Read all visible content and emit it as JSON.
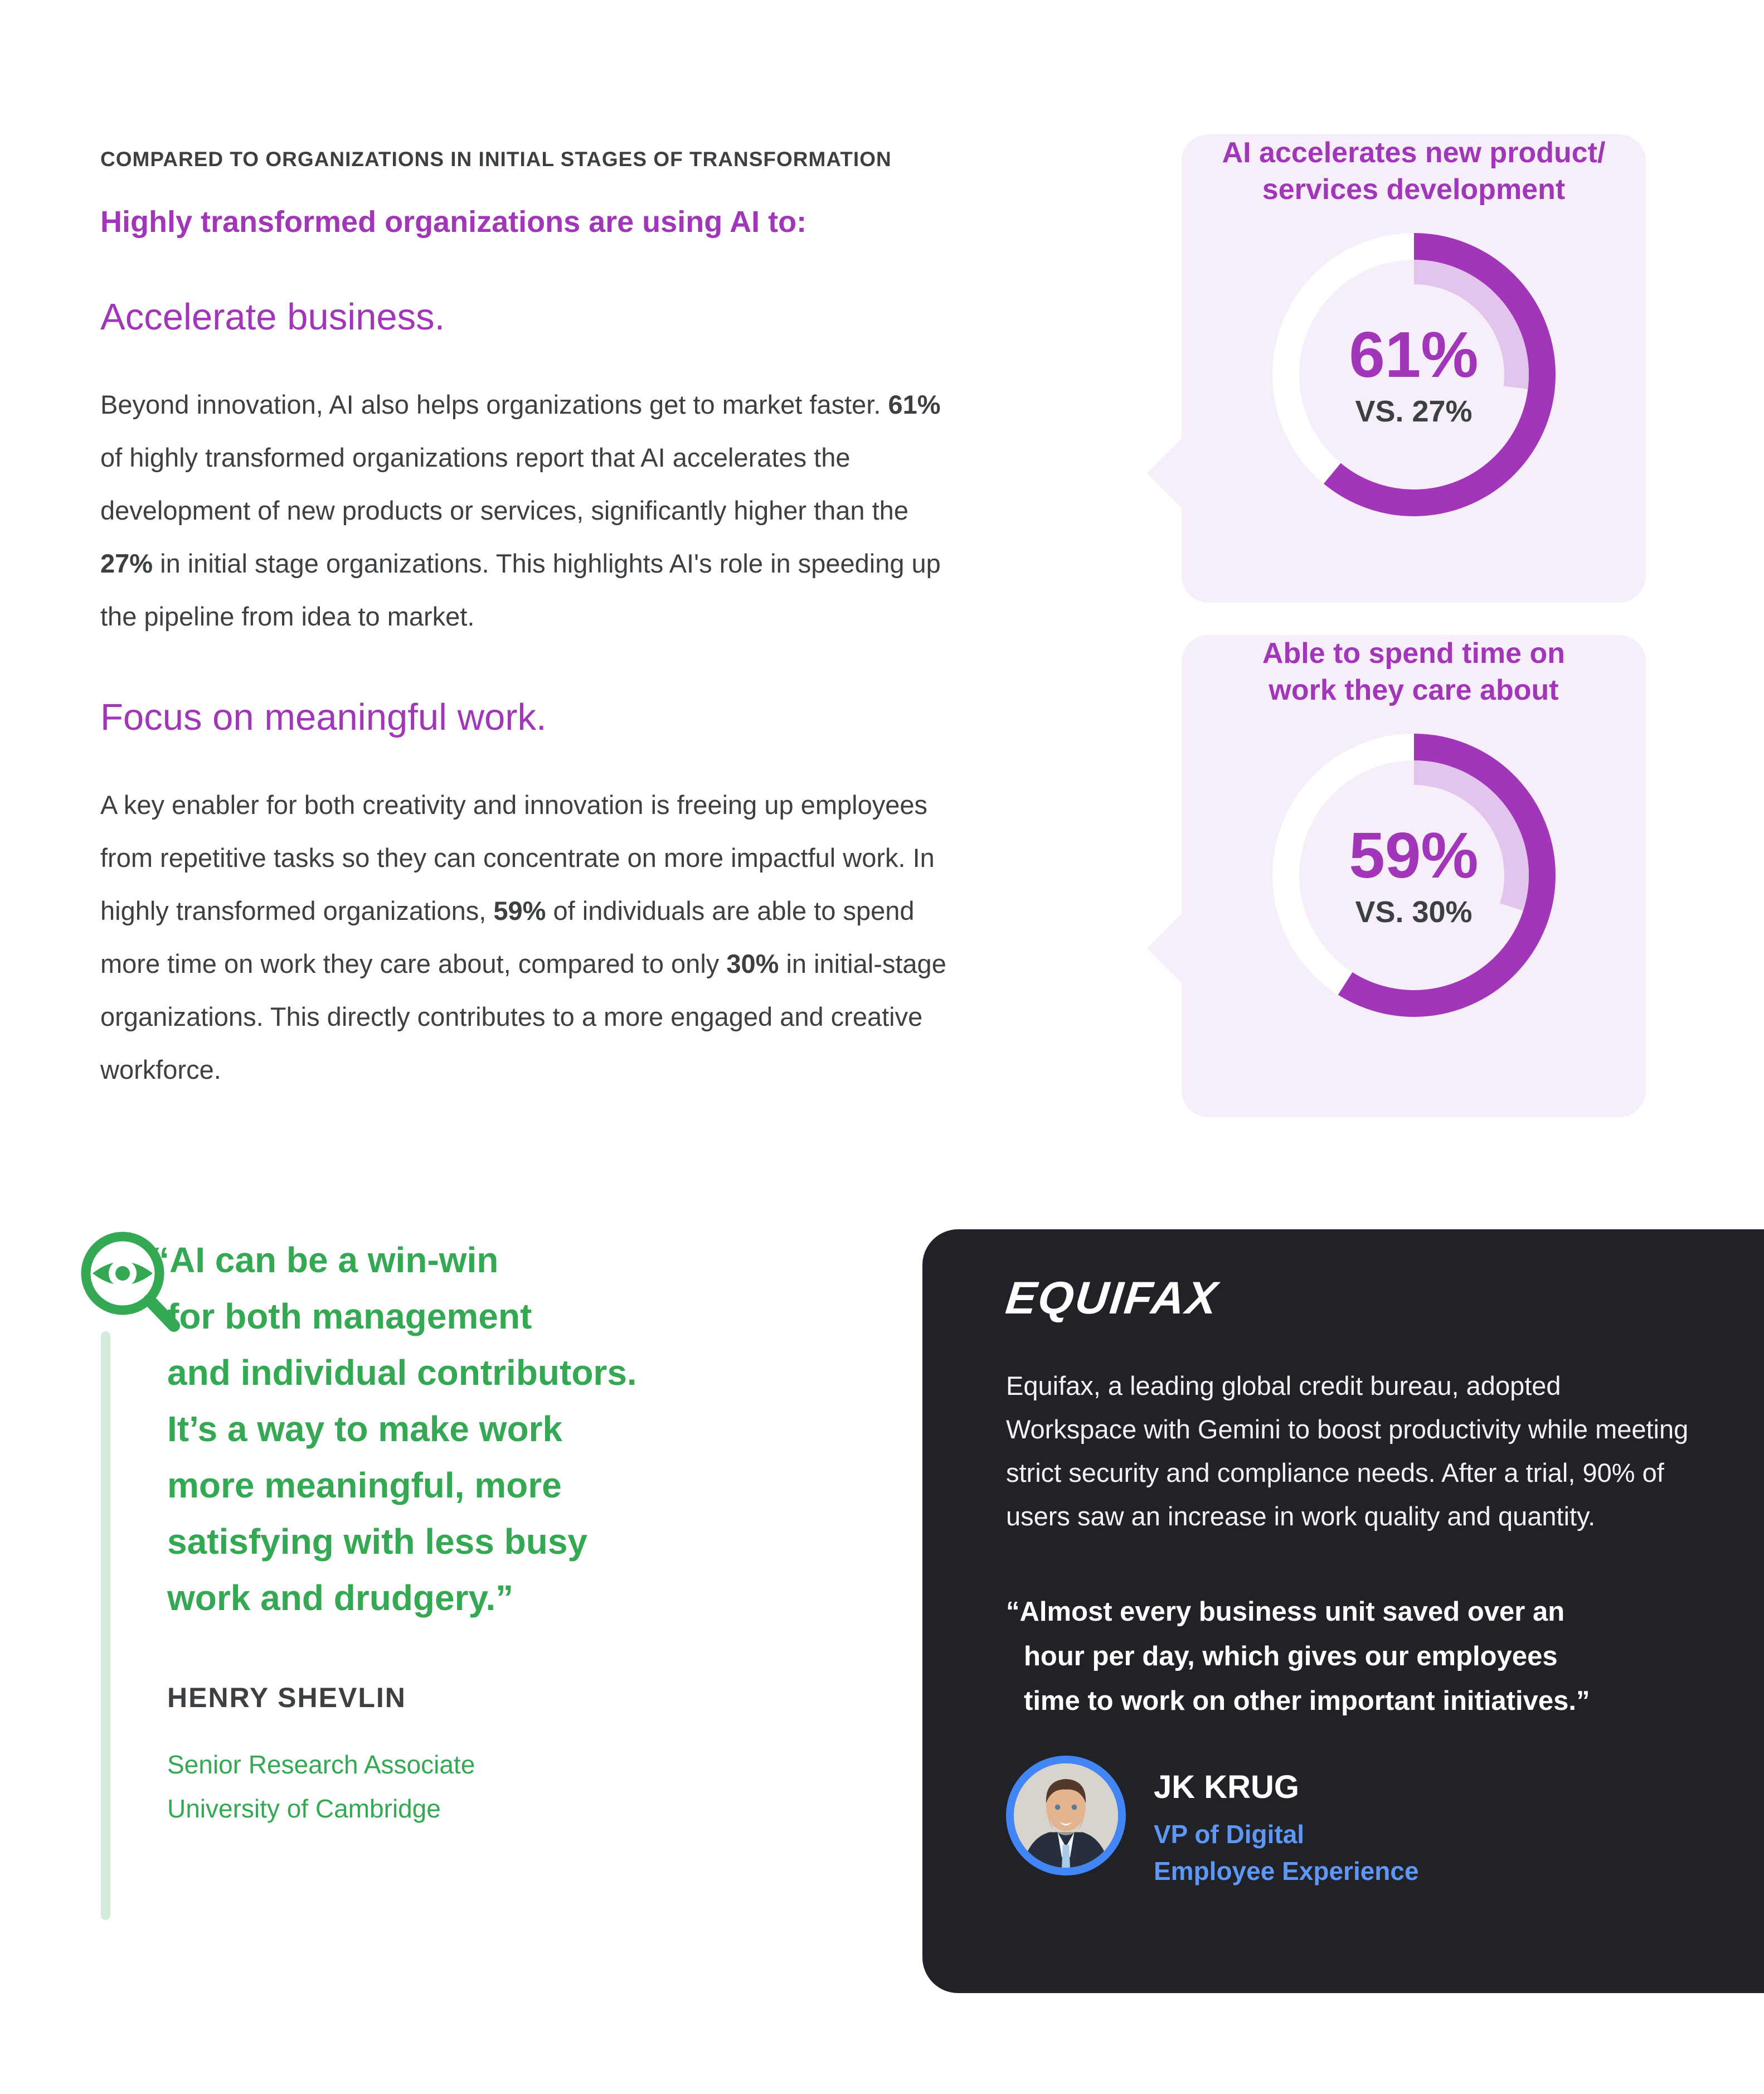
{
  "colors": {
    "purple": "#a136b8",
    "purple_light_ring": "#e2c4ec",
    "card_bg": "#f6eef9",
    "text_dark": "#3c4043",
    "green": "#34a853",
    "green_line": "#d3ead9",
    "dark_card_bg": "#202227",
    "blue": "#4285f4",
    "blue_text": "#5e97f6"
  },
  "header": {
    "eyebrow": "COMPARED TO ORGANIZATIONS IN INITIAL STAGES OF TRANSFORMATION",
    "subhead": "Highly transformed organizations are using AI to:"
  },
  "sections": [
    {
      "heading": "Accelerate business.",
      "paragraph": [
        {
          "text": "Beyond innovation, AI also helps organizations get to market faster. "
        },
        {
          "text": "61%",
          "bold": true
        },
        {
          "text": " of highly transformed organizations report that AI accelerates the development of new products or services, significantly higher than the "
        },
        {
          "text": "27%",
          "bold": true
        },
        {
          "text": " in initial stage organizations. This highlights AI's role in speeding up the pipeline from idea to market."
        }
      ]
    },
    {
      "heading": "Focus on meaningful work.",
      "paragraph": [
        {
          "text": "A key enabler for both creativity and innovation is freeing up employees from repetitive tasks so they can concentrate on more impactful work. In highly transformed organizations, "
        },
        {
          "text": "59%",
          "bold": true
        },
        {
          "text": " of individuals are able to spend more time on work they care about, compared to only "
        },
        {
          "text": "30%",
          "bold": true
        },
        {
          "text": " in initial-stage organizations. This directly contributes to a more engaged and creative workforce."
        }
      ]
    }
  ],
  "stat_cards": [
    {
      "title": "AI accelerates new product/\nservices development",
      "value_label": "61%",
      "vs_label": "VS. 27%",
      "value_pct": 61,
      "vs_pct": 27
    },
    {
      "title": "Able to spend time on\nwork they care about",
      "value_label": "59%",
      "vs_label": "VS. 30%",
      "value_pct": 59,
      "vs_pct": 30
    }
  ],
  "chart_data": [
    {
      "type": "pie",
      "subtype": "donut",
      "title": "AI accelerates new product/services development",
      "series": [
        {
          "name": "Highly transformed organizations",
          "value": 61
        },
        {
          "name": "Initial stage organizations",
          "value": 27
        }
      ],
      "center_label": "61%",
      "sub_label": "VS. 27%",
      "legend_position": "none"
    },
    {
      "type": "pie",
      "subtype": "donut",
      "title": "Able to spend time on work they care about",
      "series": [
        {
          "name": "Highly transformed organizations",
          "value": 59
        },
        {
          "name": "Initial stage organizations",
          "value": 30
        }
      ],
      "center_label": "59%",
      "sub_label": "VS. 30%",
      "legend_position": "none"
    }
  ],
  "pull_quote": {
    "icon": "magnifier-eye-icon",
    "text": "“AI can be a win-win\nfor both management\nand individual contributors.\nIt’s a way to make work\nmore meaningful, more\nsatisfying with less busy\nwork and drudgery.”",
    "name": "HENRY SHEVLIN",
    "role": "Senior Research Associate\nUniversity of Cambridge"
  },
  "case_study": {
    "logo_text": "EQUIFAX",
    "paragraph": "Equifax, a leading global credit bureau, adopted Workspace with Gemini to boost productivity while meeting strict security and compliance needs. After a trial, 90% of users saw an increase in work quality and quantity.",
    "quote": "“Almost every business unit saved over an\nhour per day, which gives our employees\ntime to work on other important initiatives.”",
    "name": "JK KRUG",
    "role": "VP of Digital\nEmployee Experience",
    "avatar": "jk-krug-portrait"
  }
}
